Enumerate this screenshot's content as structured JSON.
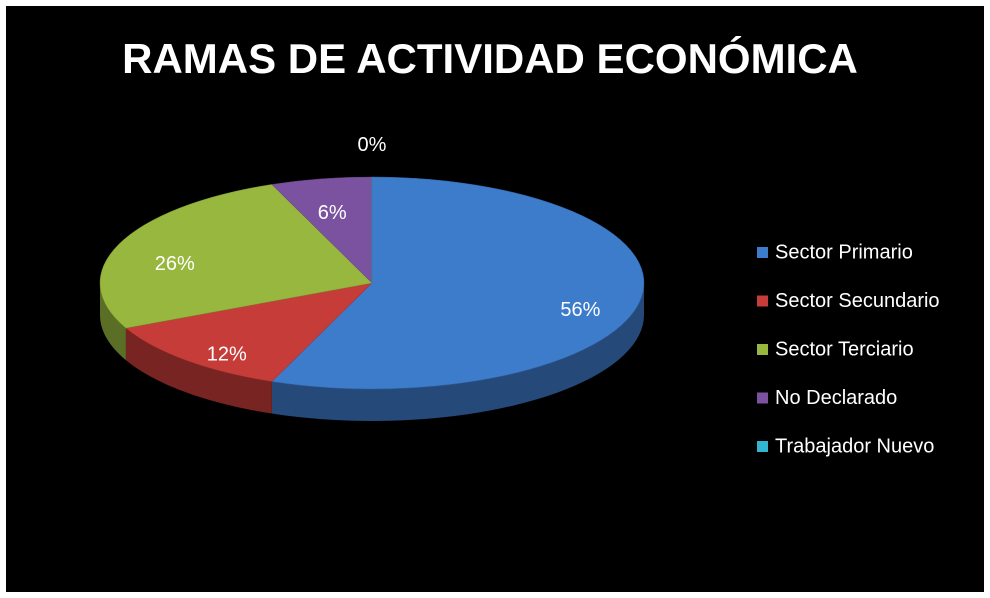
{
  "chart_data": {
    "type": "pie",
    "title": "RAMAS DE ACTIVIDAD ECONÓMICA",
    "categories": [
      "Sector Primario",
      "Sector Secundario",
      "Sector Terciario",
      "No Declarado",
      "Trabajador Nuevo"
    ],
    "values": [
      56,
      12,
      26,
      6,
      0
    ],
    "value_labels": [
      "56%",
      "12%",
      "26%",
      "6%",
      "0%"
    ],
    "colors": [
      "#3d7bcb",
      "#c63c38",
      "#98b73f",
      "#7b52a0",
      "#33b5d0"
    ],
    "legend": "right"
  }
}
